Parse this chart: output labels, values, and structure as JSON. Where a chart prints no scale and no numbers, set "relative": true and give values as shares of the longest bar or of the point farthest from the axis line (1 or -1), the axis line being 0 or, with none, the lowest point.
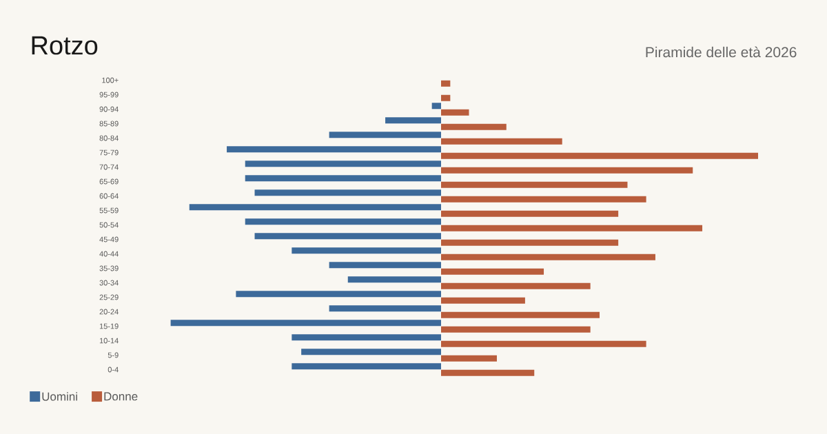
{
  "chart_data": {
    "type": "bar",
    "orientation": "horizontal",
    "relative": true,
    "title": "Rotzo",
    "subtitle": "Piramide delle età 2026",
    "categories": [
      "100+",
      "95-99",
      "90-94",
      "85-89",
      "80-84",
      "75-79",
      "70-74",
      "65-69",
      "60-64",
      "55-59",
      "50-54",
      "45-49",
      "40-44",
      "35-39",
      "30-34",
      "25-29",
      "20-24",
      "15-19",
      "10-14",
      "5-9",
      "0-4"
    ],
    "series": [
      {
        "name": "Uomini",
        "color": "#3d6a9a",
        "values": [
          0,
          0,
          -0.029,
          -0.176,
          -0.353,
          -0.676,
          -0.618,
          -0.618,
          -0.588,
          -0.794,
          -0.618,
          -0.588,
          -0.471,
          -0.353,
          -0.294,
          -0.647,
          -0.353,
          -0.853,
          -0.471,
          -0.441,
          -0.471
        ]
      },
      {
        "name": "Donne",
        "color": "#b95d3c",
        "values": [
          0.029,
          0.029,
          0.088,
          0.206,
          0.382,
          1,
          0.794,
          0.588,
          0.647,
          0.559,
          0.824,
          0.559,
          0.676,
          0.324,
          0.471,
          0.265,
          0.5,
          0.471,
          0.647,
          0.176,
          0.294
        ]
      }
    ],
    "legend": "bottom left"
  }
}
